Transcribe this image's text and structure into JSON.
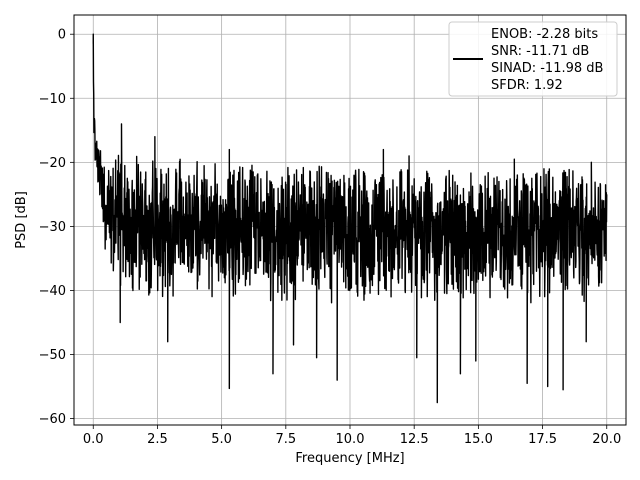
{
  "chart_data": {
    "type": "line",
    "xlabel": "Frequency [MHz]",
    "ylabel": "PSD [dB]",
    "xlim": [
      -0.75,
      20.75
    ],
    "ylim": [
      -61,
      3
    ],
    "x_ticks": [
      0.0,
      2.5,
      5.0,
      7.5,
      10.0,
      12.5,
      15.0,
      17.5,
      20.0
    ],
    "x_tick_labels": [
      "0.0",
      "2.5",
      "5.0",
      "7.5",
      "10.0",
      "12.5",
      "15.0",
      "17.5",
      "20.0"
    ],
    "y_ticks": [
      0,
      -10,
      -20,
      -30,
      -40,
      -50,
      -60
    ],
    "y_tick_labels": [
      "0",
      "−10",
      "−20",
      "−30",
      "−40",
      "−50",
      "−60"
    ],
    "grid": true,
    "legend_position": "upper right",
    "line_color": "#000000",
    "legend": {
      "lines": [
        "ENOB: -2.28 bits",
        "SNR: -11.71 dB",
        "SINAD: -11.98 dB",
        "SFDR: 1.92"
      ]
    },
    "series": [
      {
        "x": [
          0.0,
          0.02,
          0.05,
          0.1,
          0.15,
          0.2,
          0.3,
          0.5,
          0.8,
          1.1,
          1.5,
          2.0,
          2.5,
          3.0,
          3.5,
          4.0,
          4.5,
          5.0,
          5.5,
          6.0,
          6.5,
          7.0,
          7.5,
          8.0,
          8.5,
          9.0,
          9.5,
          10.0,
          10.5,
          11.0,
          11.5,
          12.0,
          12.5,
          13.0,
          13.5,
          14.0,
          14.5,
          15.0,
          15.5,
          16.0,
          16.5,
          17.0,
          17.5,
          18.0,
          18.5,
          19.0,
          19.5,
          20.0
        ],
        "y_upper": [
          0.0,
          -5.0,
          -12.0,
          -15.0,
          -16.0,
          -16.5,
          -17.0,
          -18.0,
          -18.0,
          -18.5,
          -19.0,
          -19.0,
          -19.0,
          -19.5,
          -19.5,
          -19.5,
          -19.5,
          -20.0,
          -20.0,
          -20.0,
          -20.0,
          -20.5,
          -20.5,
          -20.5,
          -20.5,
          -20.5,
          -21.0,
          -21.0,
          -21.0,
          -21.0,
          -21.0,
          -21.0,
          -21.0,
          -21.0,
          -21.0,
          -21.0,
          -21.0,
          -21.0,
          -21.0,
          -21.0,
          -21.0,
          -21.0,
          -21.0,
          -21.0,
          -21.0,
          -21.0,
          -21.0,
          -22.0
        ],
        "y_lower": [
          -5.0,
          -15.0,
          -20.0,
          -22.0,
          -24.0,
          -26.0,
          -28.0,
          -35.0,
          -38.0,
          -40.0,
          -40.0,
          -40.0,
          -40.0,
          -40.0,
          -40.0,
          -40.0,
          -40.0,
          -41.0,
          -41.0,
          -41.0,
          -41.0,
          -41.0,
          -41.0,
          -41.0,
          -41.0,
          -41.0,
          -41.0,
          -41.0,
          -41.0,
          -41.0,
          -41.0,
          -41.0,
          -41.0,
          -41.0,
          -41.0,
          -41.0,
          -41.0,
          -41.0,
          -41.0,
          -41.0,
          -41.0,
          -41.0,
          -41.0,
          -41.0,
          -41.0,
          -41.0,
          -41.0,
          -40.0
        ],
        "peaks_max": [
          [
            0.0,
            0.0
          ],
          [
            1.1,
            -14.0
          ],
          [
            2.4,
            -16.0
          ],
          [
            5.3,
            -18.0
          ],
          [
            11.3,
            -18.0
          ],
          [
            12.3,
            -19.0
          ],
          [
            16.4,
            -19.5
          ],
          [
            19.4,
            -20.0
          ]
        ],
        "peaks_min": [
          [
            1.05,
            -45.0
          ],
          [
            2.9,
            -48.0
          ],
          [
            5.3,
            -55.3
          ],
          [
            7.0,
            -53.0
          ],
          [
            7.8,
            -48.5
          ],
          [
            8.7,
            -50.5
          ],
          [
            9.5,
            -54.0
          ],
          [
            12.6,
            -50.5
          ],
          [
            13.4,
            -57.5
          ],
          [
            14.3,
            -53.0
          ],
          [
            14.9,
            -51.0
          ],
          [
            16.9,
            -54.5
          ],
          [
            17.7,
            -55.0
          ],
          [
            18.3,
            -55.5
          ],
          [
            19.2,
            -48.0
          ]
        ]
      }
    ]
  }
}
